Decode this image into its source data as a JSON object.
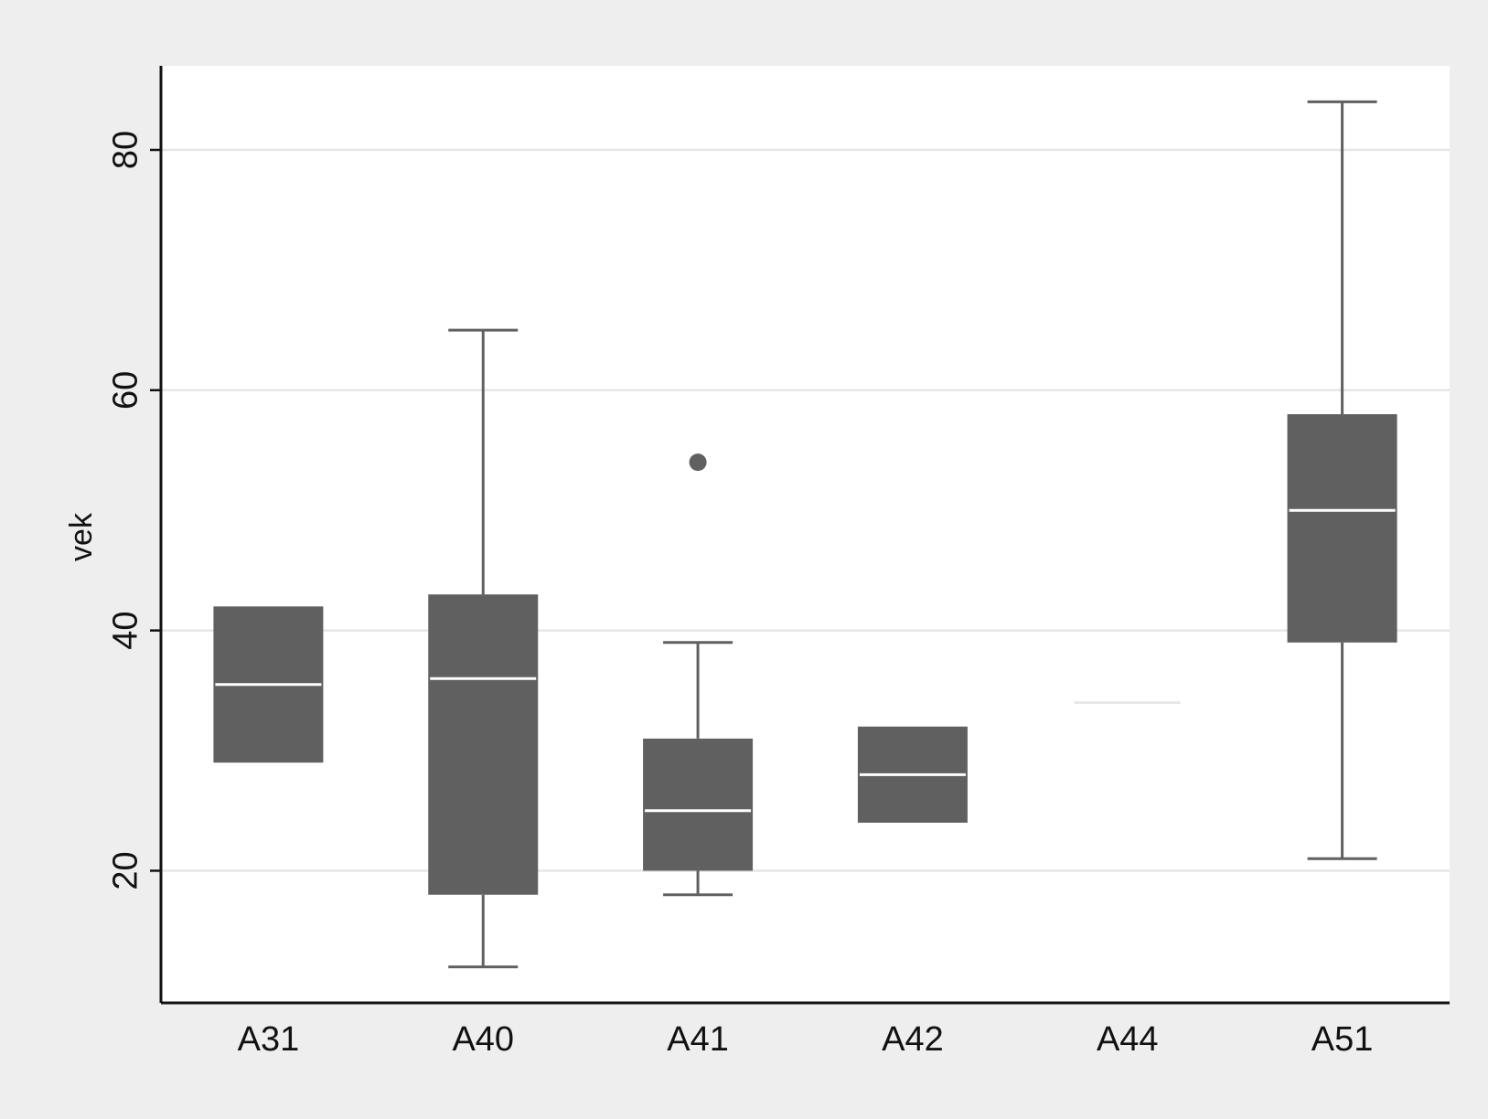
{
  "chart_data": {
    "type": "box",
    "title": "",
    "xlabel": "",
    "ylabel": "vek",
    "ylim": [
      9,
      87
    ],
    "yticks": [
      20,
      40,
      60,
      80
    ],
    "grid": true,
    "colors": {
      "box": "#606060",
      "median": "#ffffff",
      "whisker": "#606060",
      "plot_bg": "#ffffff",
      "outer_bg": "#eeeeee",
      "grid": "#e6e6e6"
    },
    "categories": [
      "A31",
      "A40",
      "A41",
      "A42",
      "A44",
      "A51"
    ],
    "boxes": [
      {
        "category": "A31",
        "q1": 29,
        "median": 35.5,
        "q3": 42,
        "whisker_low": 29,
        "whisker_high": 42,
        "outliers": []
      },
      {
        "category": "A40",
        "q1": 18,
        "median": 36,
        "q3": 43,
        "whisker_low": 12,
        "whisker_high": 65,
        "outliers": []
      },
      {
        "category": "A41",
        "q1": 20,
        "median": 25,
        "q3": 31,
        "whisker_low": 18,
        "whisker_high": 39,
        "outliers": [
          54
        ]
      },
      {
        "category": "A42",
        "q1": 24,
        "median": 28,
        "q3": 32,
        "whisker_low": 24,
        "whisker_high": 32,
        "outliers": []
      },
      {
        "category": "A44",
        "q1": 34,
        "median": 34,
        "q3": 34,
        "whisker_low": 34,
        "whisker_high": 34,
        "outliers": []
      },
      {
        "category": "A51",
        "q1": 39,
        "median": 50,
        "q3": 58,
        "whisker_low": 21,
        "whisker_high": 84,
        "outliers": []
      }
    ]
  }
}
